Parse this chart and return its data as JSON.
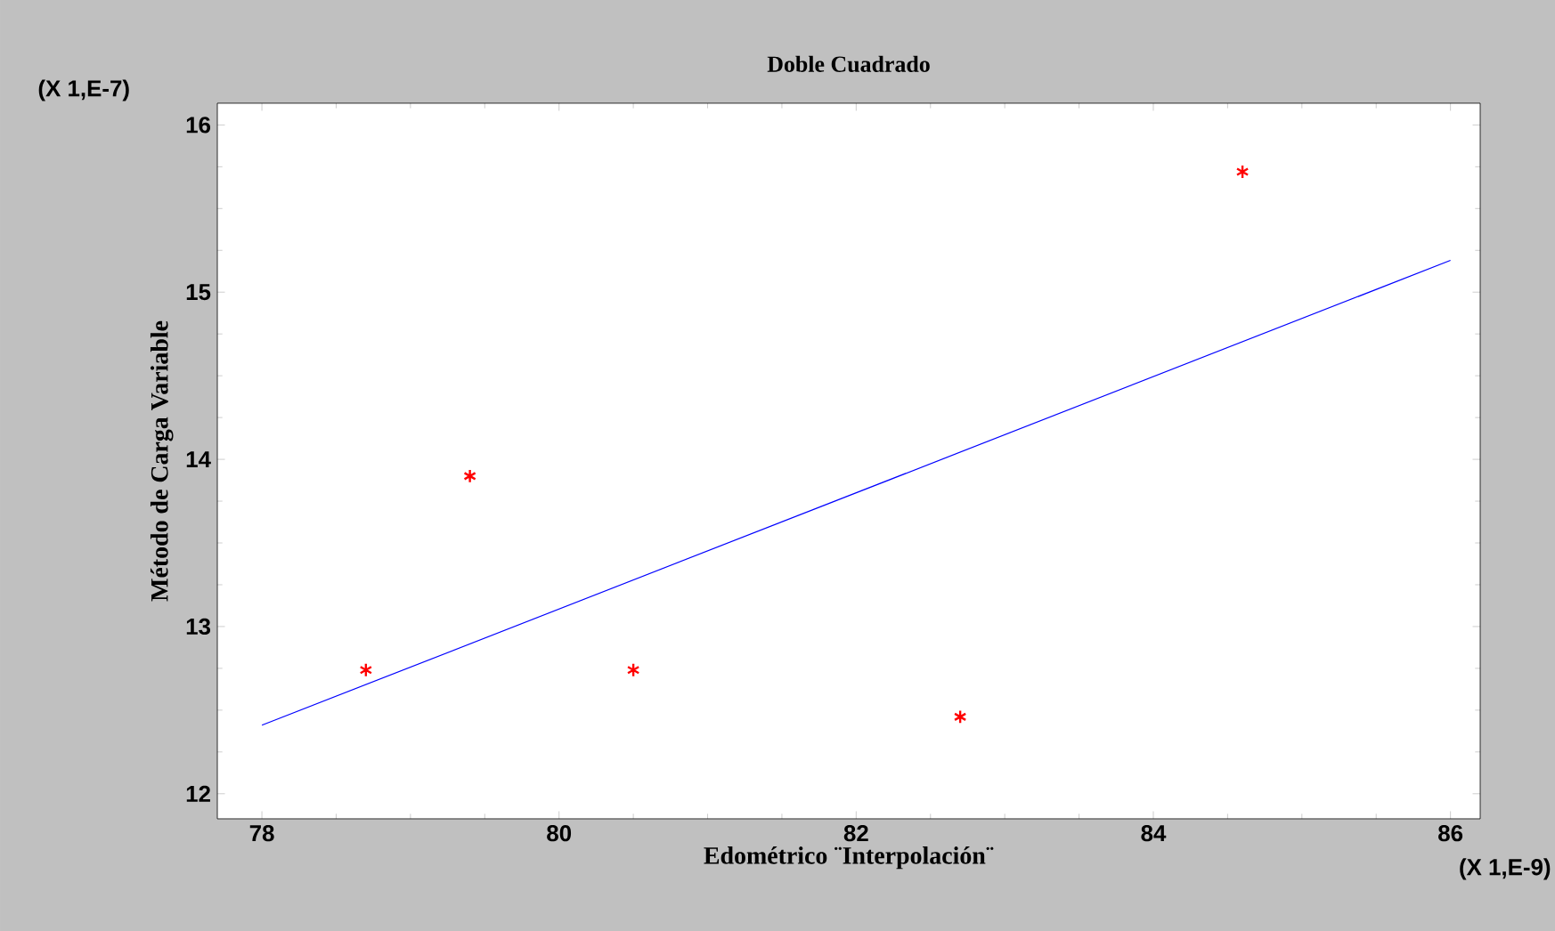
{
  "chart_data": {
    "type": "scatter",
    "title": "Doble Cuadrado",
    "xlabel": "Edométrico ¨Interpolación¨",
    "ylabel": "Método de Carga Variable",
    "annotations": [
      "(X 1,E-7)",
      "(X 1,E-9)"
    ],
    "xlim": [
      77.7,
      86.2
    ],
    "ylim": [
      11.85,
      16.13
    ],
    "xticks": [
      78,
      80,
      82,
      84,
      86
    ],
    "yticks": [
      12,
      13,
      14,
      15,
      16
    ],
    "grid": false,
    "series": [
      {
        "color": "#ff0000",
        "marker": "cross",
        "x": [
          78.7,
          79.4,
          80.5,
          82.7,
          84.6
        ],
        "values": [
          12.74,
          13.9,
          12.74,
          12.46,
          15.72
        ]
      },
      {
        "type": "line",
        "color": "#0000ff",
        "marker": "none",
        "line_style": "solid",
        "x": [
          78,
          86
        ],
        "values": [
          12.41,
          15.19
        ]
      }
    ]
  }
}
